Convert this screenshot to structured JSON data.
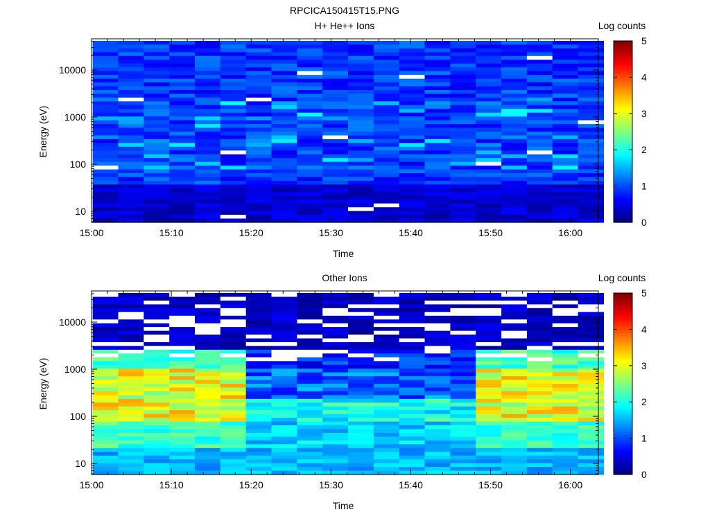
{
  "page_title": "RPCICA150415T15.PNG",
  "chart_data": [
    {
      "type": "heatmap",
      "title": "H+ He++ Ions",
      "xlabel": "Time",
      "ylabel": "Energy (eV)",
      "x_ticks": [
        "15:00",
        "15:10",
        "15:20",
        "15:30",
        "15:40",
        "15:50",
        "16:00"
      ],
      "y_ticks": [
        "10",
        "100",
        "1000",
        "10000"
      ],
      "y_scale": "log",
      "colorbar": {
        "label": "Log counts",
        "ticks": [
          "0",
          "1",
          "2",
          "3",
          "4",
          "5"
        ],
        "range": [
          0,
          5
        ]
      },
      "pattern": "uniform low counts (~0.5-1.5) across all energies, occasional empty bins"
    },
    {
      "type": "heatmap",
      "title": "Other Ions",
      "xlabel": "Time",
      "ylabel": "Energy (eV)",
      "x_ticks": [
        "15:00",
        "15:10",
        "15:20",
        "15:30",
        "15:40",
        "15:50",
        "16:00"
      ],
      "y_ticks": [
        "10",
        "100",
        "1000",
        "10000"
      ],
      "y_scale": "log",
      "colorbar": {
        "label": "Log counts",
        "ticks": [
          "0",
          "1",
          "2",
          "3",
          "4",
          "5"
        ],
        "range": [
          0,
          5
        ]
      },
      "pattern": "enhanced counts (~2.5-3.5) at 100-1000 eV during 15:02-15:18 and 15:47-16:03, low counts above ~3000 eV"
    }
  ]
}
